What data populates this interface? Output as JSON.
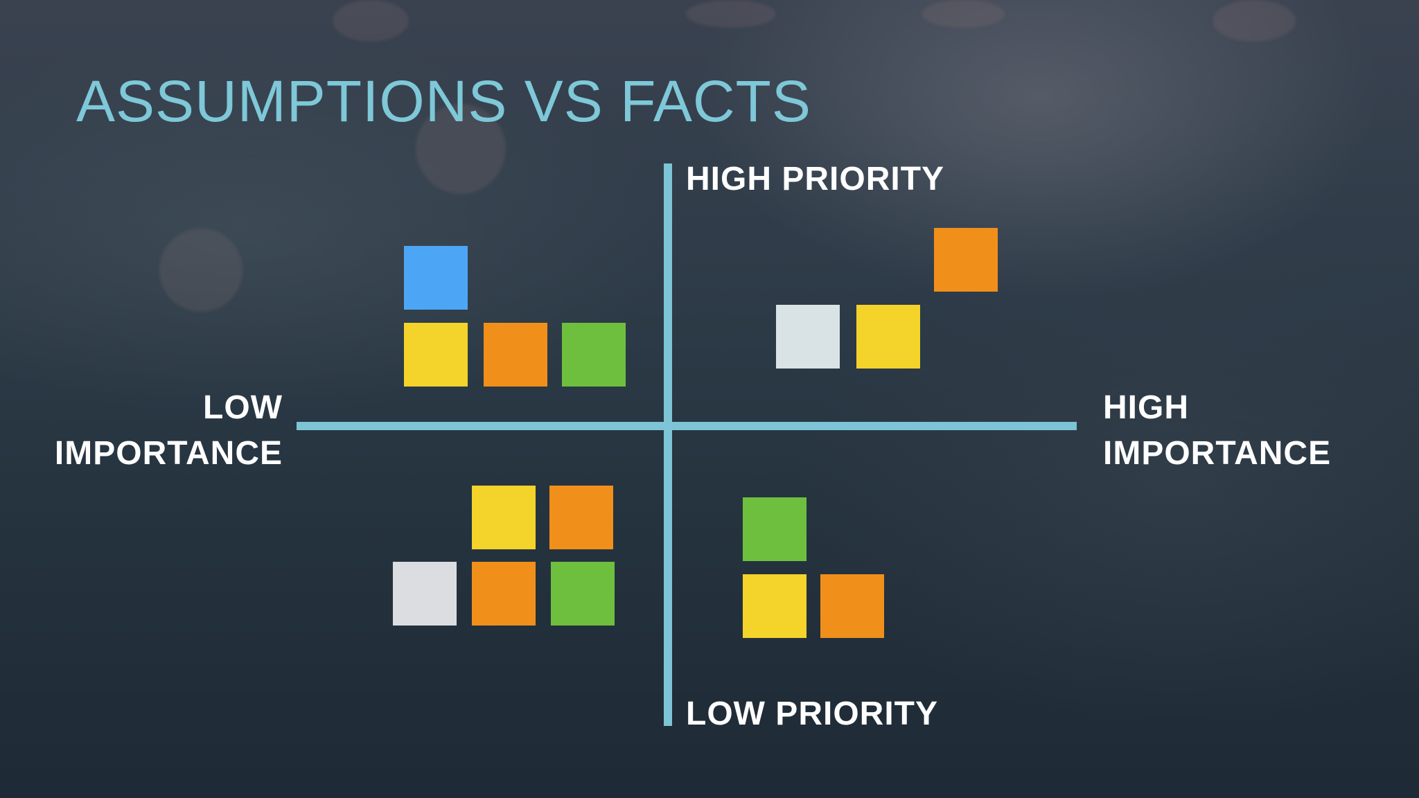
{
  "title": "ASSUMPTIONS VS FACTS",
  "axes": {
    "top": "HIGH PRIORITY",
    "bottom": "LOW PRIORITY",
    "left": [
      "LOW",
      "IMPORTANCE"
    ],
    "right": [
      "HIGH",
      "IMPORTANCE"
    ],
    "color": "#7cc4d6"
  },
  "colors": {
    "blue": "#4da6f5",
    "yellow": "#f4d32a",
    "orange": "#f18f1b",
    "green": "#6fbf3e",
    "gray": "#dcdde0",
    "light": "#d9e3e5",
    "title": "#7ec8d8"
  },
  "quadrants": [
    {
      "name": "top-left",
      "notes": [
        "blue",
        "yellow",
        "orange",
        "green"
      ]
    },
    {
      "name": "top-right",
      "notes": [
        "orange",
        "light",
        "yellow"
      ]
    },
    {
      "name": "bottom-left",
      "notes": [
        "yellow",
        "orange",
        "gray",
        "orange",
        "green"
      ]
    },
    {
      "name": "bottom-right",
      "notes": [
        "green",
        "yellow",
        "orange"
      ]
    }
  ]
}
